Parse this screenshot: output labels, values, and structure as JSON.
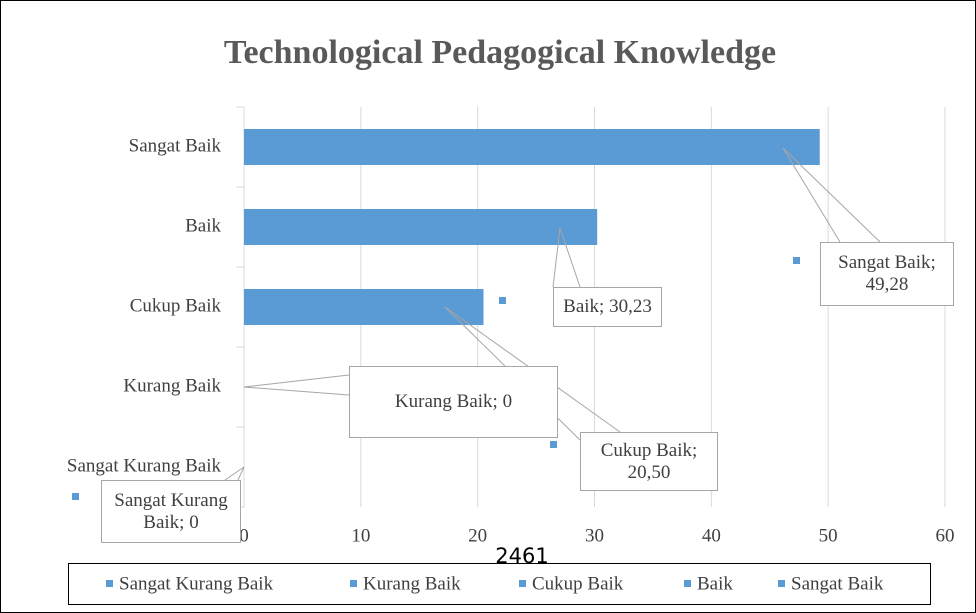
{
  "chart_data": {
    "type": "bar",
    "orientation": "horizontal",
    "title": "Technological Pedagogical Knowledge",
    "categories": [
      "Sangat Baik",
      "Baik",
      "Cukup Baik",
      "Kurang Baik",
      "Sangat Kurang Baik"
    ],
    "values": [
      49.28,
      30.23,
      20.5,
      0,
      0
    ],
    "value_labels": [
      "Sangat Baik; 49,28",
      "Baik; 30,23",
      "Cukup Baik; 20,50",
      "Kurang Baik; 0",
      "Sangat Kurang Baik; 0"
    ],
    "legend": [
      "Sangat Kurang Baik",
      "Kurang Baik",
      "Cukup Baik",
      "Baik",
      "Sangat Baik"
    ],
    "color": "#5b9bd5",
    "xlim": [
      0,
      60
    ],
    "xticks": [
      0,
      10,
      20,
      30,
      40,
      50,
      60
    ],
    "grid": true,
    "annotation": "2461"
  }
}
